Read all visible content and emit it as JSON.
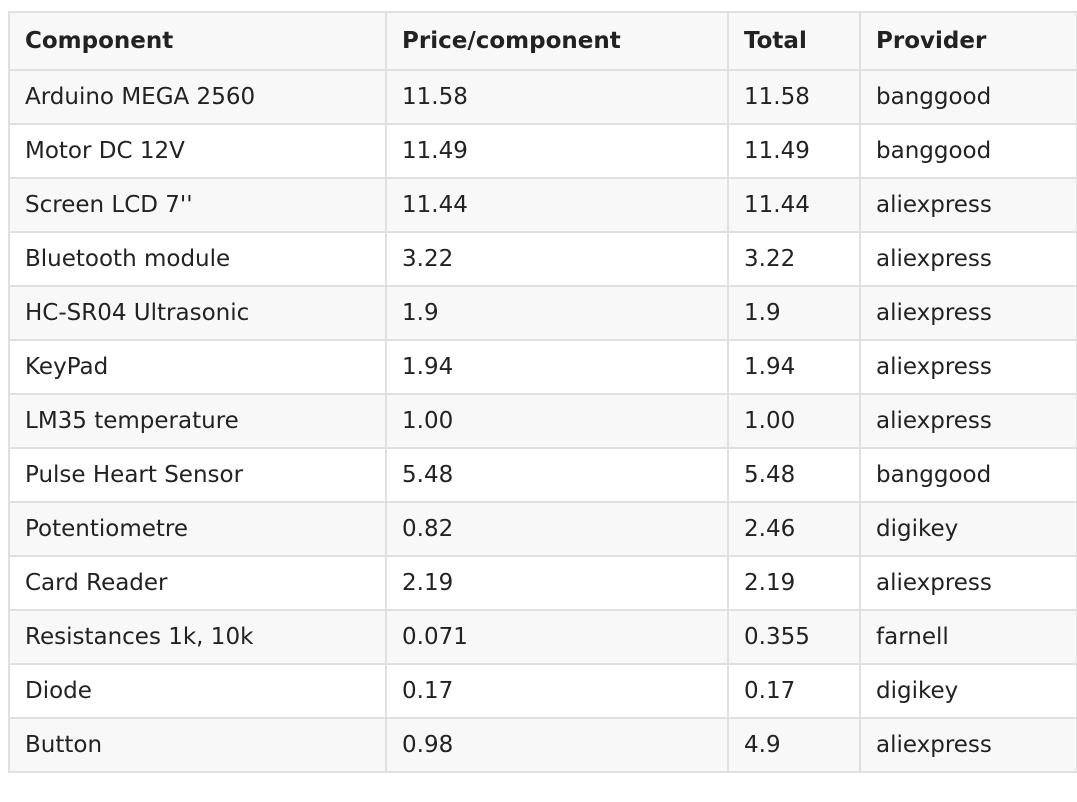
{
  "table": {
    "headers": [
      "Component",
      "Price/component",
      "Total",
      "Provider"
    ],
    "rows": [
      [
        "Arduino MEGA 2560",
        "11.58",
        "11.58",
        "banggood"
      ],
      [
        "Motor DC 12V",
        "11.49",
        "11.49",
        "banggood"
      ],
      [
        "Screen LCD 7''",
        "11.44",
        "11.44",
        "aliexpress"
      ],
      [
        "Bluetooth module",
        "3.22",
        "3.22",
        "aliexpress"
      ],
      [
        "HC-SR04 Ultrasonic",
        "1.9",
        "1.9",
        "aliexpress"
      ],
      [
        "KeyPad",
        "1.94",
        "1.94",
        "aliexpress"
      ],
      [
        "LM35 temperature",
        "1.00",
        "1.00",
        "aliexpress"
      ],
      [
        "Pulse Heart Sensor",
        "5.48",
        "5.48",
        "banggood"
      ],
      [
        "Potentiometre",
        "0.82",
        "2.46",
        "digikey"
      ],
      [
        "Card Reader",
        "2.19",
        "2.19",
        "aliexpress"
      ],
      [
        "Resistances 1k, 10k",
        "0.071",
        "0.355",
        "farnell"
      ],
      [
        "Diode",
        "0.17",
        "0.17",
        "digikey"
      ],
      [
        "Button",
        "0.98",
        "4.9",
        "aliexpress"
      ]
    ]
  }
}
